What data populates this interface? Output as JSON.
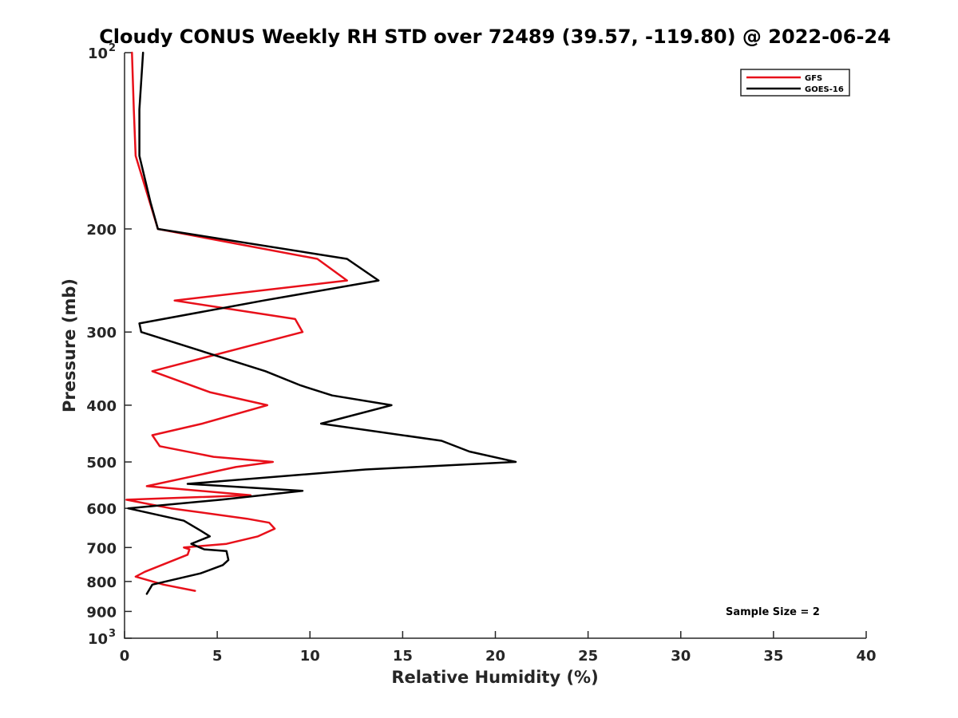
{
  "chart_data": {
    "type": "line",
    "title": "Cloudy CONUS Weekly RH STD over 72489 (39.57, -119.80) @ 2022-06-24",
    "xlabel": "Relative Humidity (%)",
    "ylabel": "Pressure (mb)",
    "xlim": [
      0,
      40
    ],
    "ylim": [
      100,
      1000
    ],
    "y_scale": "log",
    "y_reversed": true,
    "grid": false,
    "legend_position": "top-right",
    "x_ticks": [
      "0",
      "5",
      "10",
      "15",
      "20",
      "25",
      "30",
      "35",
      "40"
    ],
    "y_ticks": [
      {
        "value": 100,
        "label": "10",
        "exp": "2"
      },
      {
        "value": 200,
        "label": "200",
        "exp": ""
      },
      {
        "value": 300,
        "label": "300",
        "exp": ""
      },
      {
        "value": 400,
        "label": "400",
        "exp": ""
      },
      {
        "value": 500,
        "label": "500",
        "exp": ""
      },
      {
        "value": 600,
        "label": "600",
        "exp": ""
      },
      {
        "value": 700,
        "label": "700",
        "exp": ""
      },
      {
        "value": 800,
        "label": "800",
        "exp": ""
      },
      {
        "value": 900,
        "label": "900",
        "exp": ""
      },
      {
        "value": 1000,
        "label": "10",
        "exp": "3"
      }
    ],
    "annotation": "Sample Size = 2",
    "series": [
      {
        "name": "GFS",
        "color": "#e8101a",
        "points": [
          [
            0.4,
            100
          ],
          [
            0.5,
            125
          ],
          [
            0.6,
            150
          ],
          [
            1.8,
            200
          ],
          [
            10.4,
            225
          ],
          [
            12.0,
            245
          ],
          [
            2.7,
            265
          ],
          [
            9.2,
            285
          ],
          [
            9.6,
            300
          ],
          [
            1.5,
            350
          ],
          [
            4.6,
            380
          ],
          [
            7.7,
            400
          ],
          [
            4.2,
            430
          ],
          [
            1.5,
            450
          ],
          [
            1.9,
            470
          ],
          [
            4.8,
            490
          ],
          [
            8.0,
            500
          ],
          [
            6.0,
            510
          ],
          [
            1.2,
            550
          ],
          [
            6.8,
            570
          ],
          [
            0.1,
            580
          ],
          [
            2.5,
            600
          ],
          [
            6.6,
            625
          ],
          [
            7.8,
            635
          ],
          [
            8.1,
            650
          ],
          [
            7.2,
            670
          ],
          [
            5.5,
            690
          ],
          [
            3.2,
            700
          ],
          [
            3.5,
            705
          ],
          [
            3.4,
            720
          ],
          [
            1.1,
            770
          ],
          [
            0.6,
            785
          ],
          [
            2.1,
            810
          ],
          [
            3.8,
            830
          ]
        ]
      },
      {
        "name": "GOES-16",
        "color": "#000000",
        "points": [
          [
            1.0,
            100
          ],
          [
            0.8,
            125
          ],
          [
            0.8,
            150
          ],
          [
            1.4,
            180
          ],
          [
            1.8,
            200
          ],
          [
            12.0,
            225
          ],
          [
            13.7,
            245
          ],
          [
            7.5,
            265
          ],
          [
            0.8,
            290
          ],
          [
            0.9,
            300
          ],
          [
            7.6,
            350
          ],
          [
            9.5,
            370
          ],
          [
            11.2,
            385
          ],
          [
            14.4,
            400
          ],
          [
            10.6,
            430
          ],
          [
            17.1,
            460
          ],
          [
            18.6,
            480
          ],
          [
            21.1,
            500
          ],
          [
            13.0,
            515
          ],
          [
            3.4,
            545
          ],
          [
            9.6,
            560
          ],
          [
            5.2,
            580
          ],
          [
            0.2,
            600
          ],
          [
            3.2,
            630
          ],
          [
            4.1,
            655
          ],
          [
            4.6,
            670
          ],
          [
            3.6,
            690
          ],
          [
            4.3,
            705
          ],
          [
            5.5,
            710
          ],
          [
            5.6,
            735
          ],
          [
            5.3,
            750
          ],
          [
            4.1,
            775
          ],
          [
            1.5,
            810
          ],
          [
            1.2,
            840
          ]
        ]
      }
    ]
  }
}
